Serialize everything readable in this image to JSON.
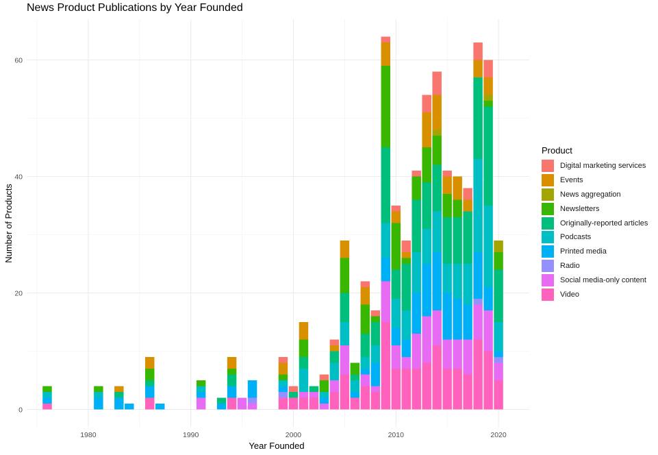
{
  "chart_data": {
    "type": "bar",
    "stacked": true,
    "title": "News Product Publications by Year Founded",
    "xlabel": "Year Founded",
    "ylabel": "Number of Products",
    "xlim": [
      1974,
      2023
    ],
    "ylim": [
      -3,
      67
    ],
    "x_ticks": [
      1980,
      1990,
      2000,
      2010,
      2020
    ],
    "y_ticks": [
      0,
      20,
      40,
      60
    ],
    "grid": true,
    "legend_title": "Product",
    "legend_position": "right",
    "series": [
      {
        "name": "Digital marketing services",
        "color": "#F8766D"
      },
      {
        "name": "Events",
        "color": "#D89000"
      },
      {
        "name": "News aggregation",
        "color": "#A3A500"
      },
      {
        "name": "Newsletters",
        "color": "#39B600"
      },
      {
        "name": "Originally-reported articles",
        "color": "#00BF7D"
      },
      {
        "name": "Podcasts",
        "color": "#00BFC4"
      },
      {
        "name": "Printed media",
        "color": "#00B0F6"
      },
      {
        "name": "Radio",
        "color": "#9590FF"
      },
      {
        "name": "Social media-only content",
        "color": "#E76BF3"
      },
      {
        "name": "Video",
        "color": "#FF62BC"
      }
    ],
    "stack_order_bottom_to_top": [
      "Video",
      "Social media-only content",
      "Radio",
      "Printed media",
      "Podcasts",
      "Originally-reported articles",
      "Newsletters",
      "News aggregation",
      "Events",
      "Digital marketing services"
    ],
    "bars": [
      {
        "year": 1976,
        "values": {
          "Video": 1,
          "Printed media": 1,
          "Podcasts": 1,
          "Newsletters": 1
        }
      },
      {
        "year": 1981,
        "values": {
          "Printed media": 2,
          "Podcasts": 1,
          "Newsletters": 1
        }
      },
      {
        "year": 1983,
        "values": {
          "Printed media": 2,
          "Originally-reported articles": 1,
          "Events": 1
        }
      },
      {
        "year": 1984,
        "values": {
          "Printed media": 1
        }
      },
      {
        "year": 1986,
        "values": {
          "Video": 2,
          "Printed media": 2,
          "Originally-reported articles": 1,
          "Newsletters": 2,
          "Events": 2
        }
      },
      {
        "year": 1987,
        "values": {
          "Printed media": 1
        }
      },
      {
        "year": 1991,
        "values": {
          "Social media-only content": 2,
          "Printed media": 1,
          "Podcasts": 1,
          "Newsletters": 1
        }
      },
      {
        "year": 1993,
        "values": {
          "Printed media": 1,
          "Originally-reported articles": 1
        }
      },
      {
        "year": 1994,
        "values": {
          "Video": 2,
          "Printed media": 2,
          "Originally-reported articles": 2,
          "Newsletters": 1,
          "Events": 2
        }
      },
      {
        "year": 1995,
        "values": {
          "Social media-only content": 2
        }
      },
      {
        "year": 1996,
        "values": {
          "Social media-only content": 1,
          "Radio": 1,
          "Printed media": 3
        }
      },
      {
        "year": 1999,
        "values": {
          "Video": 2,
          "Radio": 1,
          "Printed media": 1,
          "Podcasts": 1,
          "Newsletters": 1,
          "Events": 2,
          "Digital marketing services": 1
        }
      },
      {
        "year": 2000,
        "values": {
          "Video": 2,
          "Originally-reported articles": 1,
          "Digital marketing services": 1
        }
      },
      {
        "year": 2001,
        "values": {
          "Video": 2,
          "Social media-only content": 1,
          "Podcasts": 4,
          "Originally-reported articles": 2,
          "Newsletters": 3,
          "Events": 3
        }
      },
      {
        "year": 2002,
        "values": {
          "Video": 2,
          "Social media-only content": 1,
          "Originally-reported articles": 1
        }
      },
      {
        "year": 2003,
        "values": {
          "Social media-only content": 1,
          "Printed media": 1,
          "Podcasts": 1,
          "Newsletters": 2,
          "Digital marketing services": 1
        }
      },
      {
        "year": 2004,
        "values": {
          "Video": 3,
          "Social media-only content": 2,
          "Podcasts": 3,
          "Originally-reported articles": 2,
          "Events": 1,
          "Digital marketing services": 1
        }
      },
      {
        "year": 2005,
        "values": {
          "Video": 6,
          "Social media-only content": 5,
          "Podcasts": 4,
          "Originally-reported articles": 5,
          "Newsletters": 6,
          "Events": 3
        }
      },
      {
        "year": 2006,
        "values": {
          "Video": 2,
          "Printed media": 1,
          "Podcasts": 2,
          "Originally-reported articles": 1,
          "Newsletters": 2
        }
      },
      {
        "year": 2007,
        "values": {
          "Video": 4,
          "Social media-only content": 2,
          "Printed media": 1,
          "Podcasts": 2,
          "Originally-reported articles": 4,
          "Newsletters": 5,
          "Events": 3,
          "Digital marketing services": 1
        }
      },
      {
        "year": 2008,
        "values": {
          "Video": 3,
          "Social media-only content": 1,
          "Printed media": 4,
          "Podcasts": 3,
          "Originally-reported articles": 4,
          "Newsletters": 1,
          "Digital marketing services": 1
        }
      },
      {
        "year": 2009,
        "values": {
          "Video": 15,
          "Social media-only content": 7,
          "Printed media": 4,
          "Podcasts": 6,
          "Originally-reported articles": 13,
          "Newsletters": 14,
          "Events": 4,
          "Digital marketing services": 1
        }
      },
      {
        "year": 2010,
        "values": {
          "Video": 7,
          "Social media-only content": 4,
          "Printed media": 3,
          "Podcasts": 5,
          "Originally-reported articles": 5,
          "Newsletters": 8,
          "Events": 2,
          "Digital marketing services": 1
        }
      },
      {
        "year": 2011,
        "values": {
          "Video": 7,
          "Social media-only content": 2,
          "Printed media": 3,
          "Podcasts": 5,
          "Originally-reported articles": 8,
          "Newsletters": 1,
          "Events": 1,
          "Digital marketing services": 2
        }
      },
      {
        "year": 2012,
        "values": {
          "Video": 7,
          "Social media-only content": 6,
          "Printed media": 7,
          "Podcasts": 7,
          "Originally-reported articles": 9,
          "Newsletters": 4,
          "Digital marketing services": 1
        }
      },
      {
        "year": 2013,
        "values": {
          "Video": 8,
          "Social media-only content": 8,
          "Printed media": 9,
          "Podcasts": 6,
          "Originally-reported articles": 8,
          "Newsletters": 6,
          "Events": 6,
          "Digital marketing services": 3
        }
      },
      {
        "year": 2014,
        "values": {
          "Video": 11,
          "Social media-only content": 6,
          "Printed media": 10,
          "Podcasts": 7,
          "Originally-reported articles": 8,
          "Newsletters": 5,
          "News aggregation": 1,
          "Events": 6,
          "Digital marketing services": 4
        }
      },
      {
        "year": 2015,
        "values": {
          "Video": 7,
          "Social media-only content": 5,
          "Printed media": 8,
          "Podcasts": 5,
          "Originally-reported articles": 8,
          "Newsletters": 4,
          "Events": 3,
          "Digital marketing services": 1
        }
      },
      {
        "year": 2016,
        "values": {
          "Video": 7,
          "Social media-only content": 5,
          "Printed media": 7,
          "Podcasts": 6,
          "Originally-reported articles": 8,
          "Newsletters": 3,
          "Events": 4
        }
      },
      {
        "year": 2017,
        "values": {
          "Video": 6,
          "Social media-only content": 6,
          "Printed media": 6,
          "Podcasts": 7,
          "Originally-reported articles": 9,
          "Events": 2,
          "Digital marketing services": 2
        }
      },
      {
        "year": 2018,
        "values": {
          "Video": 12,
          "Social media-only content": 6,
          "Radio": 1,
          "Printed media": 8,
          "Podcasts": 16,
          "Originally-reported articles": 14,
          "Events": 3,
          "Digital marketing services": 3
        }
      },
      {
        "year": 2019,
        "values": {
          "Video": 10,
          "Social media-only content": 7,
          "Printed media": 4,
          "Podcasts": 14,
          "Originally-reported articles": 17,
          "Newsletters": 1,
          "News aggregation": 1,
          "Events": 3,
          "Digital marketing services": 3
        }
      },
      {
        "year": 2020,
        "values": {
          "Video": 5,
          "Social media-only content": 3,
          "Radio": 1,
          "Printed media": 1,
          "Podcasts": 5,
          "Originally-reported articles": 9,
          "Newsletters": 3,
          "News aggregation": 2
        }
      }
    ]
  }
}
